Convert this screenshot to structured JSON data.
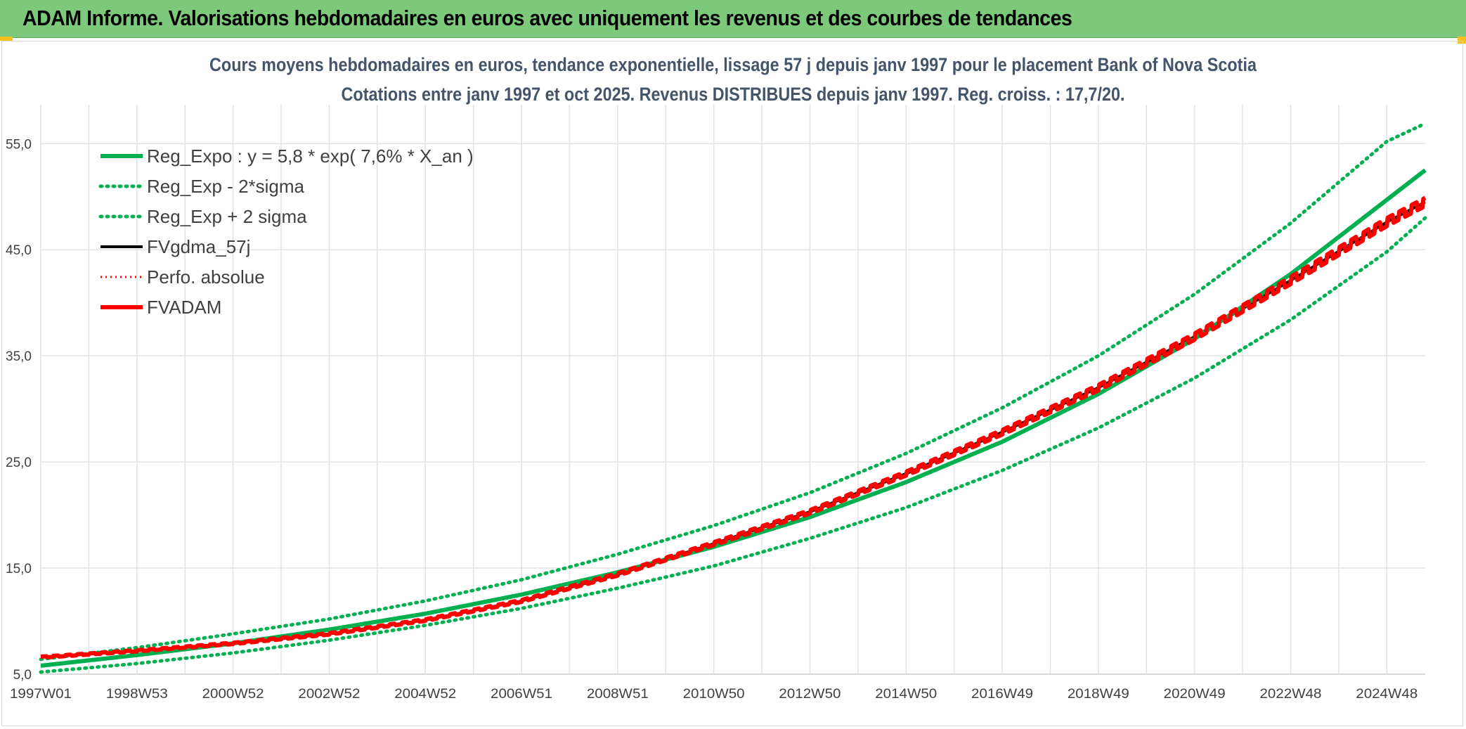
{
  "header": {
    "title": "ADAM Informe. Valorisations hebdomadaires en euros avec uniquement les revenus et des courbes de tendances"
  },
  "chart_data": {
    "type": "line",
    "title_lines": [
      "Cours moyens hebdomadaires en euros, tendance exponentielle, lissage 57 j depuis janv 1997 pour le placement Bank of Nova Scotia",
      "Cotations entre janv 1997 et oct 2025. Revenus DISTRIBUES depuis janv 1997. Reg. croiss. : 17,7/20."
    ],
    "xlabel": "",
    "ylabel": "",
    "x_range": [
      1997.0,
      2025.8
    ],
    "ylim": [
      5,
      58
    ],
    "y_ticks": [
      5,
      15,
      25,
      35,
      45,
      55
    ],
    "y_tick_labels": [
      "5,0",
      "15,0",
      "25,0",
      "35,0",
      "45,0",
      "55,0"
    ],
    "x_ticks": [
      1997.0,
      1999.0,
      2001.0,
      2003.0,
      2005.0,
      2007.0,
      2009.0,
      2011.0,
      2013.0,
      2015.0,
      2017.0,
      2019.0,
      2021.0,
      2023.0,
      2025.0
    ],
    "x_tick_labels": [
      "1997W01",
      "1998W53",
      "2000W52",
      "2002W52",
      "2004W52",
      "2006W51",
      "2008W51",
      "2010W50",
      "2012W50",
      "2014W50",
      "2016W49",
      "2018W49",
      "2020W49",
      "2022W48",
      "2024W48"
    ],
    "grid": true,
    "legend_position": "top-left",
    "series": [
      {
        "name": "Reg_Expo : y = 5,8 * exp( 7,6% *  X_an )",
        "color": "#00b050",
        "style": "solid",
        "x": [
          1997,
          1999,
          2001,
          2003,
          2005,
          2007,
          2009,
          2011,
          2013,
          2015,
          2017,
          2019,
          2021,
          2023,
          2025,
          2025.8
        ],
        "values": [
          5.8,
          6.8,
          7.9,
          9.2,
          10.7,
          12.5,
          14.6,
          17.0,
          19.8,
          23.1,
          26.9,
          31.4,
          36.6,
          42.7,
          49.7,
          52.5
        ]
      },
      {
        "name": "Reg_Exp - 2*sigma",
        "color": "#00b050",
        "style": "dotted",
        "x": [
          1997,
          1999,
          2001,
          2003,
          2005,
          2007,
          2009,
          2011,
          2013,
          2015,
          2017,
          2019,
          2021,
          2023,
          2025,
          2025.8
        ],
        "values": [
          5.2,
          6.0,
          7.0,
          8.2,
          9.6,
          11.2,
          13.1,
          15.2,
          17.8,
          20.7,
          24.2,
          28.2,
          32.9,
          38.4,
          44.8,
          48.0
        ]
      },
      {
        "name": "Reg_Exp + 2 sigma",
        "color": "#00b050",
        "style": "dotted",
        "x": [
          1997,
          1999,
          2001,
          2003,
          2005,
          2007,
          2009,
          2011,
          2013,
          2015,
          2017,
          2019,
          2021,
          2023,
          2025,
          2025.8
        ],
        "values": [
          6.4,
          7.5,
          8.8,
          10.2,
          11.9,
          13.9,
          16.3,
          19.0,
          22.1,
          25.8,
          30.1,
          35.0,
          40.8,
          47.5,
          55.2,
          56.9
        ]
      },
      {
        "name": "FVgdma_57j",
        "color": "#000000",
        "style": "solid",
        "x": [
          1997,
          1999,
          2001,
          2003,
          2005,
          2007,
          2009,
          2011,
          2013,
          2015,
          2017,
          2019,
          2021,
          2023,
          2025,
          2025.8
        ],
        "values": [
          6.6,
          7.2,
          7.9,
          8.8,
          10.1,
          11.9,
          14.4,
          17.3,
          20.3,
          23.9,
          27.8,
          32.0,
          36.8,
          42.1,
          47.6,
          49.5
        ]
      },
      {
        "name": "Perfo. absolue",
        "color": "#ff0000",
        "style": "dotted",
        "x": [
          1997,
          1999,
          2001,
          2003,
          2005,
          2007,
          2009,
          2011,
          2013,
          2015,
          2017,
          2019,
          2021,
          2023,
          2025,
          2025.8
        ],
        "values": [
          6.6,
          7.2,
          7.9,
          8.8,
          10.1,
          11.9,
          14.4,
          17.3,
          20.3,
          23.9,
          27.8,
          32.0,
          36.8,
          42.1,
          47.6,
          49.5
        ]
      },
      {
        "name": "FVADAM",
        "color": "#ff0000",
        "style": "solid",
        "x": [
          1997,
          1999,
          2001,
          2003,
          2005,
          2007,
          2009,
          2011,
          2013,
          2015,
          2017,
          2019,
          2021,
          2023,
          2025,
          2025.8
        ],
        "values": [
          6.6,
          7.2,
          7.9,
          8.8,
          10.1,
          11.9,
          14.4,
          17.3,
          20.3,
          23.9,
          27.8,
          32.0,
          36.8,
          42.1,
          47.6,
          49.5
        ]
      }
    ]
  }
}
